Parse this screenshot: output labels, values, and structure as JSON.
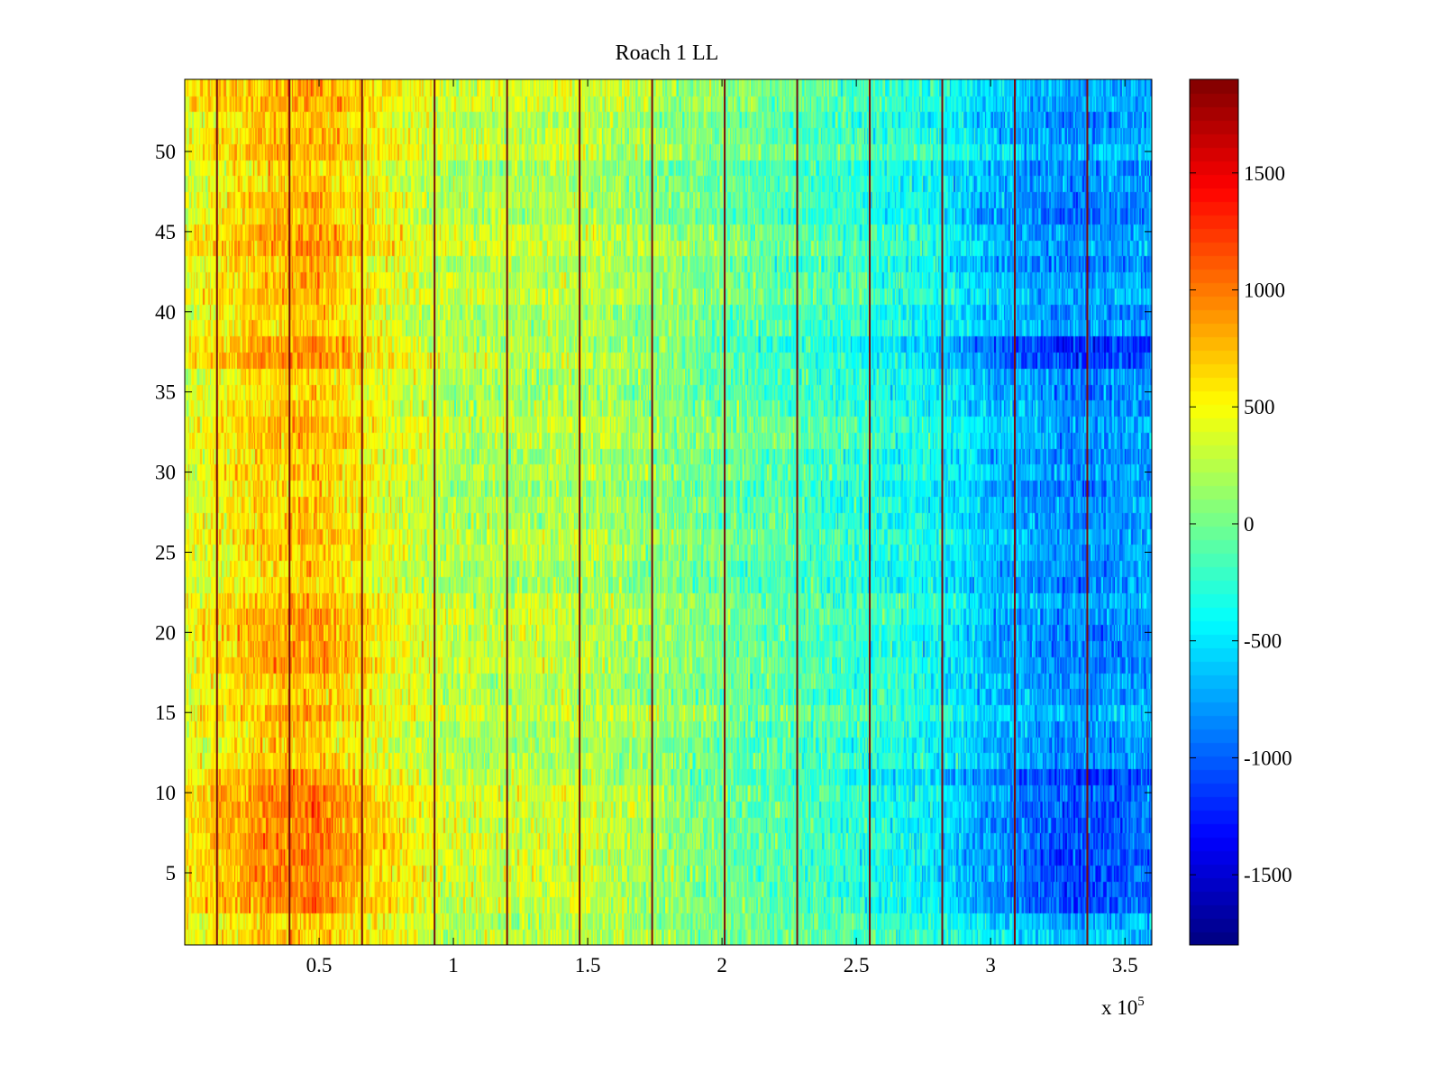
{
  "chart_data": {
    "type": "heatmap",
    "title": "Roach 1 LL",
    "xlabel": "",
    "ylabel": "",
    "x_multiplier_label": "x 10",
    "x_multiplier_exponent": "5",
    "xlim": [
      0,
      3.6
    ],
    "ylim": [
      0.5,
      54.5
    ],
    "rows": 54,
    "columns": 720,
    "x_ticks": [
      0.5,
      1,
      1.5,
      2,
      2.5,
      3,
      3.5
    ],
    "x_tick_labels": [
      "0.5",
      "1",
      "1.5",
      "2",
      "2.5",
      "3",
      "3.5"
    ],
    "y_ticks": [
      5,
      10,
      15,
      20,
      25,
      30,
      35,
      40,
      45,
      50
    ],
    "y_tick_labels": [
      "5",
      "10",
      "15",
      "20",
      "25",
      "30",
      "35",
      "40",
      "45",
      "50"
    ],
    "colorbar": {
      "colormap": "jet",
      "clim": [
        -1800,
        1900
      ],
      "ticks": [
        1500,
        1000,
        500,
        0,
        -500,
        -1000,
        -1500
      ],
      "tick_labels": [
        "1500",
        "1000",
        "500",
        "0",
        "-500",
        "-1000",
        "-1500"
      ]
    },
    "trend_x": [
      0.0,
      0.3,
      0.5,
      0.7,
      1.0,
      1.5,
      2.0,
      2.5,
      2.8,
      3.0,
      3.3,
      3.6
    ],
    "trend_values": [
      400,
      700,
      750,
      500,
      250,
      250,
      0,
      -200,
      -350,
      -600,
      -800,
      -700
    ],
    "row_amplification": [
      {
        "rows": [
          1,
          2
        ],
        "factor": 0.9
      },
      {
        "rows": [
          3,
          11
        ],
        "factor": 1.35
      },
      {
        "rows": [
          12,
          17
        ],
        "factor": 1.0
      },
      {
        "rows": [
          18,
          21
        ],
        "factor": 1.15
      },
      {
        "rows": [
          37,
          38
        ],
        "factor": 1.4
      },
      {
        "rows": [
          43,
          47
        ],
        "factor": 1.1
      },
      {
        "rows": [
          51,
          54
        ],
        "factor": 1.05
      }
    ],
    "noise_amplitude": 450,
    "divider_lines_x": [
      0.12,
      0.39,
      0.66,
      0.93,
      1.2,
      1.47,
      1.74,
      2.01,
      2.28,
      2.55,
      2.82,
      3.09,
      3.36
    ],
    "divider_color": "#7a0c0c"
  }
}
